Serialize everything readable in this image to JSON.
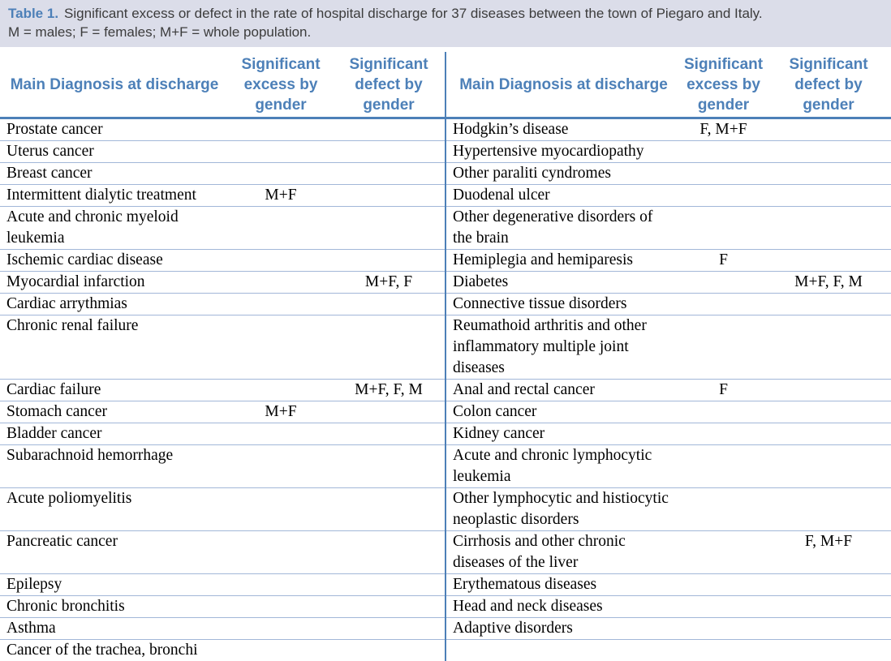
{
  "caption": {
    "label": "Table 1.",
    "text": "Significant excess or defect in the rate of hospital discharge for 37 diseases between the town of Piegaro and Italy.",
    "legend": "M = males; F = females; M+F = whole population."
  },
  "columns": {
    "diagnosis": "Main Diagnosis at discharge",
    "excess": "Significant excess by gender",
    "defect": "Significant defect by gender"
  },
  "rows": [
    {
      "left": {
        "diagnosis": "Prostate cancer",
        "excess": "",
        "defect": ""
      },
      "right": {
        "diagnosis": "Hodgkin’s disease",
        "excess": "F, M+F",
        "defect": ""
      }
    },
    {
      "left": {
        "diagnosis": "Uterus cancer",
        "excess": "",
        "defect": ""
      },
      "right": {
        "diagnosis": "Hypertensive myocardiopathy",
        "excess": "",
        "defect": ""
      }
    },
    {
      "left": {
        "diagnosis": "Breast cancer",
        "excess": "",
        "defect": ""
      },
      "right": {
        "diagnosis": "Other paraliti cyndromes",
        "excess": "",
        "defect": ""
      }
    },
    {
      "left": {
        "diagnosis": "Intermittent dialytic treatment",
        "excess": "M+F",
        "defect": ""
      },
      "right": {
        "diagnosis": "Duodenal ulcer",
        "excess": "",
        "defect": ""
      }
    },
    {
      "left": {
        "diagnosis": "Acute and chronic myeloid leukemia",
        "excess": "",
        "defect": ""
      },
      "right": {
        "diagnosis": "Other degenerative disorders of the brain",
        "excess": "",
        "defect": ""
      }
    },
    {
      "left": {
        "diagnosis": "Ischemic cardiac disease",
        "excess": "",
        "defect": ""
      },
      "right": {
        "diagnosis": "Hemiplegia and hemiparesis",
        "excess": "F",
        "defect": ""
      }
    },
    {
      "left": {
        "diagnosis": "Myocardial infarction",
        "excess": "",
        "defect": "M+F, F"
      },
      "right": {
        "diagnosis": "Diabetes",
        "excess": "",
        "defect": "M+F, F, M"
      }
    },
    {
      "left": {
        "diagnosis": "Cardiac arrythmias",
        "excess": "",
        "defect": ""
      },
      "right": {
        "diagnosis": "Connective tissue disorders",
        "excess": "",
        "defect": ""
      }
    },
    {
      "left": {
        "diagnosis": "Chronic renal failure",
        "excess": "",
        "defect": ""
      },
      "right": {
        "diagnosis": "Reumathoid arthritis and other inflammatory multiple joint diseases",
        "excess": "",
        "defect": ""
      }
    },
    {
      "left": {
        "diagnosis": "Cardiac failure",
        "excess": "",
        "defect": "M+F, F, M"
      },
      "right": {
        "diagnosis": "Anal and rectal cancer",
        "excess": "F",
        "defect": ""
      }
    },
    {
      "left": {
        "diagnosis": "Stomach cancer",
        "excess": "M+F",
        "defect": ""
      },
      "right": {
        "diagnosis": "Colon cancer",
        "excess": "",
        "defect": ""
      }
    },
    {
      "left": {
        "diagnosis": "Bladder cancer",
        "excess": "",
        "defect": ""
      },
      "right": {
        "diagnosis": "Kidney cancer",
        "excess": "",
        "defect": ""
      }
    },
    {
      "left": {
        "diagnosis": "Subarachnoid hemorrhage",
        "excess": "",
        "defect": ""
      },
      "right": {
        "diagnosis": "Acute and chronic lymphocytic leukemia",
        "excess": "",
        "defect": ""
      }
    },
    {
      "left": {
        "diagnosis": "Acute poliomyelitis",
        "excess": "",
        "defect": ""
      },
      "right": {
        "diagnosis": "Other lymphocytic and histiocytic neoplastic disorders",
        "excess": "",
        "defect": ""
      }
    },
    {
      "left": {
        "diagnosis": "Pancreatic cancer",
        "excess": "",
        "defect": ""
      },
      "right": {
        "diagnosis": "Cirrhosis and other chronic diseases of the liver",
        "excess": "",
        "defect": "F, M+F"
      }
    },
    {
      "left": {
        "diagnosis": "Epilepsy",
        "excess": "",
        "defect": ""
      },
      "right": {
        "diagnosis": "Erythematous diseases",
        "excess": "",
        "defect": ""
      }
    },
    {
      "left": {
        "diagnosis": "Chronic bronchitis",
        "excess": "",
        "defect": ""
      },
      "right": {
        "diagnosis": "Head and neck diseases",
        "excess": "",
        "defect": ""
      }
    },
    {
      "left": {
        "diagnosis": "Asthma",
        "excess": "",
        "defect": ""
      },
      "right": {
        "diagnosis": "Adaptive disorders",
        "excess": "",
        "defect": ""
      }
    },
    {
      "left": {
        "diagnosis": "Cancer of the trachea, bronchi and lung",
        "excess": "",
        "defect": ""
      },
      "right": {
        "diagnosis": "",
        "excess": "",
        "defect": ""
      }
    }
  ],
  "colors": {
    "accent_blue": "#4d80b8",
    "row_line_blue": "#a2b7d8",
    "caption_background": "#dbdde9",
    "body_text": "#000000",
    "caption_text": "#3c3c3c"
  }
}
